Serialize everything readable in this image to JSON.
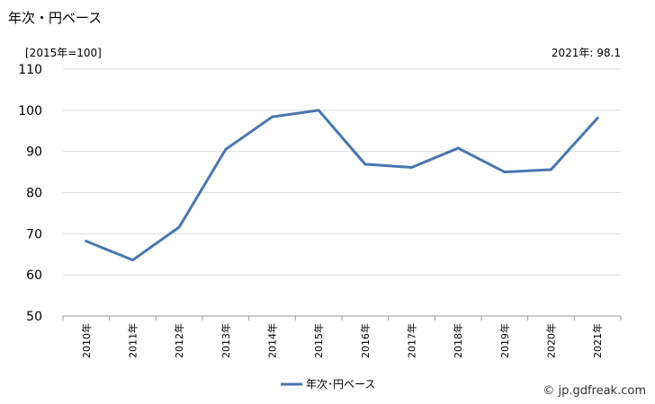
{
  "header": {
    "title": "年次・円ベース",
    "unit_note": "[2015年=100]",
    "latest_value": "2021年: 98.1"
  },
  "footer": {
    "source": "© jp.gdfreak.com"
  },
  "colors": {
    "series": "#4a76b0",
    "grid": "#dcdcdc"
  },
  "chart_data": {
    "type": "line",
    "categories": [
      "2010年",
      "2011年",
      "2012年",
      "2013年",
      "2014年",
      "2015年",
      "2016年",
      "2017年",
      "2018年",
      "2019年",
      "2020年",
      "2021年"
    ],
    "series": [
      {
        "name": "年次･円ベース",
        "values": [
          68.2,
          63.6,
          71.6,
          90.5,
          98.4,
          100.0,
          86.9,
          86.1,
          90.8,
          85.0,
          85.6,
          98.1
        ]
      }
    ],
    "ylim": [
      50,
      110
    ],
    "yticks": [
      50,
      60,
      70,
      80,
      90,
      100,
      110
    ],
    "grid": true,
    "legend": "bottom-center"
  }
}
